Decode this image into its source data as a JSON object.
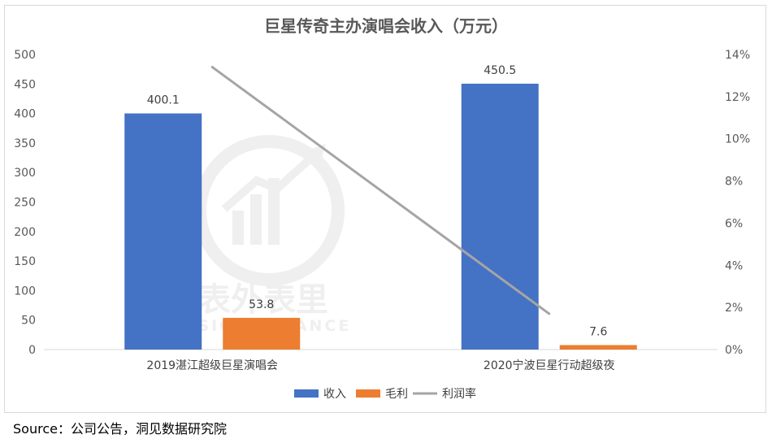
{
  "chart_data": {
    "type": "bar",
    "title": "巨星传奇主办演唱会收入（万元）",
    "categories": [
      "2019湛江超级巨星演唱会",
      "2020宁波巨星行动超级夜"
    ],
    "series": [
      {
        "name": "收入",
        "kind": "bar",
        "axis": "left",
        "color": "#4472C4",
        "values": [
          400.1,
          450.5
        ],
        "labels": [
          "400.1",
          "450.5"
        ]
      },
      {
        "name": "毛利",
        "kind": "bar",
        "axis": "left",
        "color": "#ED7D31",
        "values": [
          53.8,
          7.6
        ],
        "labels": [
          "53.8",
          "7.6"
        ]
      },
      {
        "name": "利润率",
        "kind": "line",
        "axis": "right",
        "color": "#A5A5A5",
        "values": [
          13.4,
          1.7
        ]
      }
    ],
    "y_left": {
      "min": 0,
      "max": 500,
      "step": 50,
      "ticks": [
        "0",
        "50",
        "100",
        "150",
        "200",
        "250",
        "300",
        "350",
        "400",
        "450",
        "500"
      ]
    },
    "y_right": {
      "min": 0,
      "max": 14,
      "step": 2,
      "ticks": [
        "0%",
        "2%",
        "4%",
        "6%",
        "8%",
        "10%",
        "12%",
        "14%"
      ]
    },
    "grid": false,
    "legend_position": "bottom",
    "watermark": {
      "text_cn": "表外表里",
      "text_en": "VISION FINANCE"
    }
  },
  "source": "Source：公司公告，洞见数据研究院"
}
